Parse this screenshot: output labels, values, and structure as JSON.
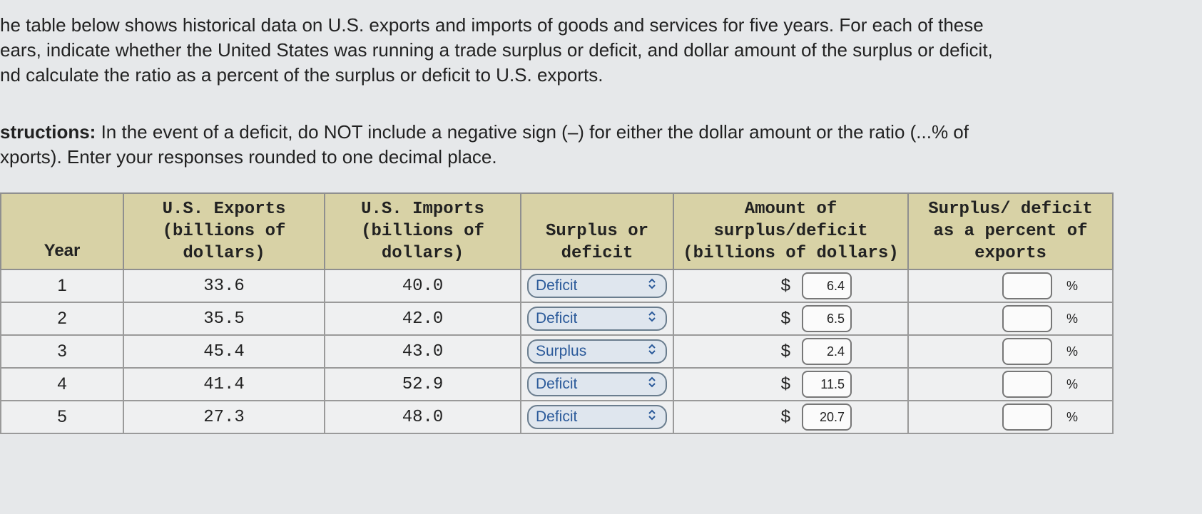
{
  "intro": {
    "lines": [
      "he table below shows historical data on U.S. exports and imports of goods and services for five years. For each of these",
      "ears, indicate whether the United States was running a trade surplus or deficit, and dollar amount of the surplus or deficit,",
      "nd calculate the ratio as a percent of the surplus or deficit to U.S. exports."
    ]
  },
  "instructions": {
    "label": "structions:",
    "lines": [
      "In the event of a deficit, do NOT include a negative sign (–) for either the dollar amount or the ratio (...% of",
      "xports). Enter your responses rounded to one decimal place."
    ]
  },
  "table": {
    "headers": [
      "Year",
      "U.S. Exports (billions of dollars)",
      "U.S. Imports (billions of dollars)",
      "Surplus or deficit",
      "Amount of surplus/deficit (billions of dollars)",
      "Surplus/ deficit as a percent of exports"
    ],
    "rows": [
      {
        "year": "1",
        "exports": "33.6",
        "imports": "40.0",
        "status": "Deficit",
        "currency": "$",
        "amount": "6.4",
        "percent_unit": "%"
      },
      {
        "year": "2",
        "exports": "35.5",
        "imports": "42.0",
        "status": "Deficit",
        "currency": "$",
        "amount": "6.5",
        "percent_unit": "%"
      },
      {
        "year": "3",
        "exports": "45.4",
        "imports": "43.0",
        "status": "Surplus",
        "currency": "$",
        "amount": "2.4",
        "percent_unit": "%"
      },
      {
        "year": "4",
        "exports": "41.4",
        "imports": "52.9",
        "status": "Deficit",
        "currency": "$",
        "amount": "11.5",
        "percent_unit": "%"
      },
      {
        "year": "5",
        "exports": "27.3",
        "imports": "48.0",
        "status": "Deficit",
        "currency": "$",
        "amount": "20.7",
        "percent_unit": "%"
      }
    ]
  }
}
